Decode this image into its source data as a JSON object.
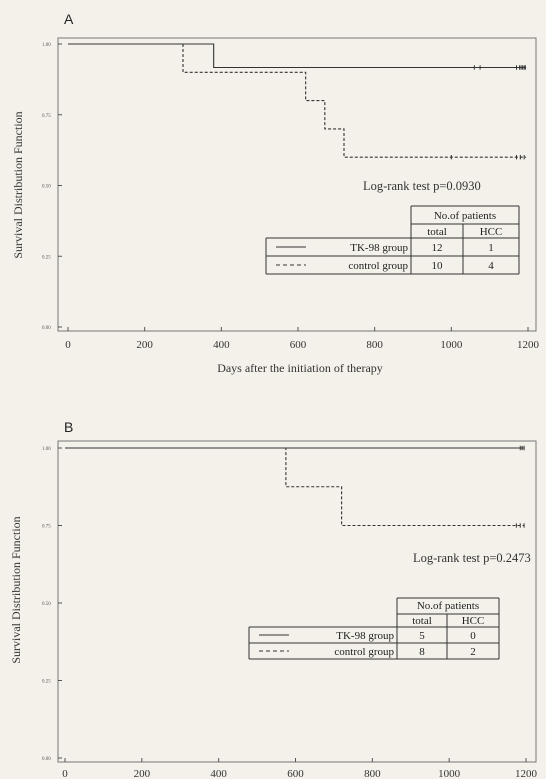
{
  "chart_data": [
    {
      "type": "line",
      "panel_label": "A",
      "xlabel": "Days after the initiation of therapy",
      "ylabel": "Survival Distribution Function",
      "xlim": [
        0,
        1200
      ],
      "ylim": [
        0,
        1
      ],
      "x_ticks": [
        0,
        200,
        400,
        600,
        800,
        1000,
        1200
      ],
      "y_ticks": [
        "0.00",
        "0.25",
        "0.50",
        "0.75",
        "1.00"
      ],
      "annotation": "Log-rank test p=0.0930",
      "legend": {
        "header": "No.of patients",
        "col_total": "total",
        "col_hcc": "HCC",
        "rows": [
          {
            "name": "TK-98 group",
            "total": "12",
            "hcc": "1",
            "style": "solid"
          },
          {
            "name": "control group",
            "total": "10",
            "hcc": "4",
            "style": "dashed"
          }
        ]
      },
      "series": [
        {
          "name": "TK-98 group",
          "style": "solid",
          "steps": [
            [
              0,
              1.0
            ],
            [
              380,
              0.917
            ],
            [
              1195,
              0.917
            ]
          ],
          "censors": [
            1060,
            1075,
            1170,
            1178,
            1182,
            1186,
            1190,
            1193
          ]
        },
        {
          "name": "control group",
          "style": "dashed",
          "steps": [
            [
              0,
              1.0
            ],
            [
              300,
              0.9
            ],
            [
              620,
              0.8
            ],
            [
              670,
              0.7
            ],
            [
              720,
              0.6
            ],
            [
              1195,
              0.6
            ]
          ],
          "censors": [
            1000,
            1170,
            1180,
            1190
          ]
        }
      ]
    },
    {
      "type": "line",
      "panel_label": "B",
      "xlabel": "Days after the initiation of therapy",
      "ylabel": "Survival Distribution Function",
      "xlim": [
        0,
        1200
      ],
      "ylim": [
        0,
        1
      ],
      "x_ticks": [
        0,
        200,
        400,
        600,
        800,
        1000,
        1200
      ],
      "y_ticks": [
        "0.00",
        "0.25",
        "0.50",
        "0.75",
        "1.00"
      ],
      "annotation": "Log-rank test p=0.2473",
      "legend": {
        "header": "No.of patients",
        "col_total": "total",
        "col_hcc": "HCC",
        "rows": [
          {
            "name": "TK-98 group",
            "total": "5",
            "hcc": "0",
            "style": "solid"
          },
          {
            "name": "control group",
            "total": "8",
            "hcc": "2",
            "style": "dashed"
          }
        ]
      },
      "series": [
        {
          "name": "TK-98 group",
          "style": "solid",
          "steps": [
            [
              0,
              1.0
            ],
            [
              1195,
              1.0
            ]
          ],
          "censors": [
            1185,
            1190,
            1195
          ]
        },
        {
          "name": "control group",
          "style": "dashed",
          "steps": [
            [
              0,
              1.0
            ],
            [
              575,
              1.0
            ],
            [
              575,
              0.875
            ],
            [
              720,
              0.75
            ],
            [
              1195,
              0.75
            ]
          ],
          "censors": [
            1175,
            1185,
            1195
          ]
        }
      ]
    }
  ]
}
